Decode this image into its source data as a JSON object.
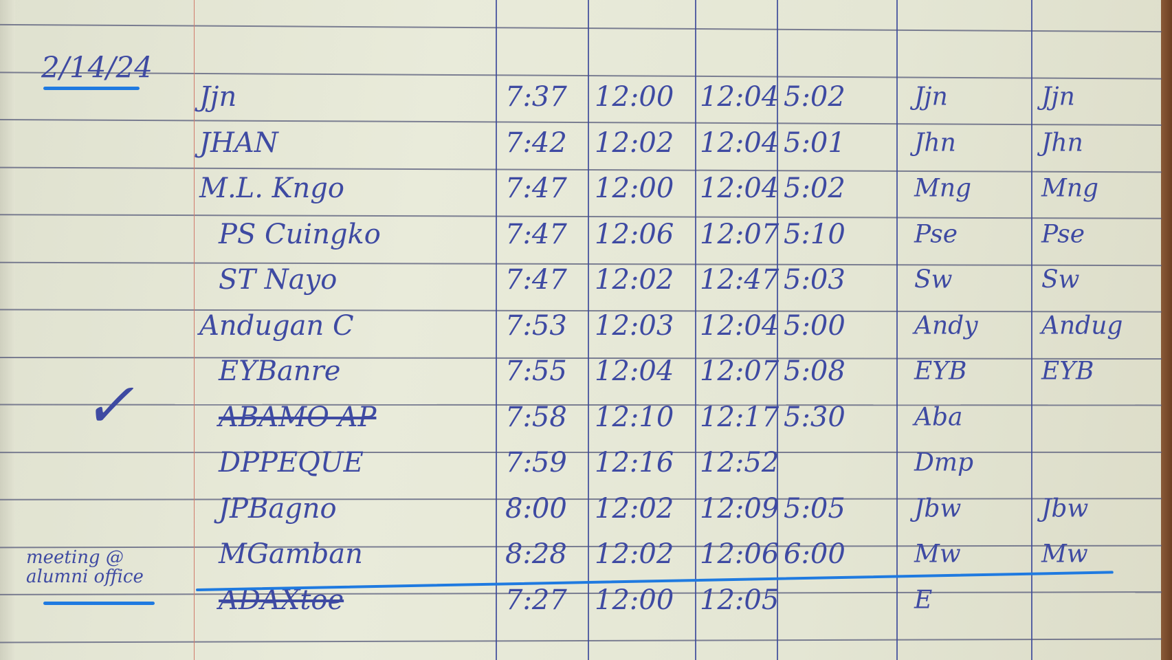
{
  "logbook": {
    "date": "2/14/24",
    "margin_check": "✓",
    "margin_note": "meeting @ alumni office",
    "colors": {
      "ink": "#3e4aa2",
      "highlighter": "#1f7ae0",
      "paper": "#e6e8d6"
    },
    "rows": [
      {
        "name": "Jjn",
        "time_in_am": "7:37",
        "time_out_am": "12:00",
        "time_in_pm": "12:04",
        "time_out_pm": "5:02",
        "sig1": "Jjn",
        "sig2": "Jjn"
      },
      {
        "name": "JHAN",
        "time_in_am": "7:42",
        "time_out_am": "12:02",
        "time_in_pm": "12:04",
        "time_out_pm": "5:01",
        "sig1": "Jhn",
        "sig2": "Jhn"
      },
      {
        "name": "M.L. Kngo",
        "time_in_am": "7:47",
        "time_out_am": "12:00",
        "time_in_pm": "12:04",
        "time_out_pm": "5:02",
        "sig1": "Mng",
        "sig2": "Mng"
      },
      {
        "name": "PS Cuingko",
        "time_in_am": "7:47",
        "time_out_am": "12:06",
        "time_in_pm": "12:07",
        "time_out_pm": "5:10",
        "sig1": "Pse",
        "sig2": "Pse"
      },
      {
        "name": "ST Nayo",
        "time_in_am": "7:47",
        "time_out_am": "12:02",
        "time_in_pm": "12:47",
        "time_out_pm": "5:03",
        "sig1": "Sw",
        "sig2": "Sw"
      },
      {
        "name": "Andugan C",
        "time_in_am": "7:53",
        "time_out_am": "12:03",
        "time_in_pm": "12:04",
        "time_out_pm": "5:00",
        "sig1": "Andy",
        "sig2": "Andug"
      },
      {
        "name": "EYBanre",
        "time_in_am": "7:55",
        "time_out_am": "12:04",
        "time_in_pm": "12:07",
        "time_out_pm": "5:08",
        "sig1": "EYB",
        "sig2": "EYB"
      },
      {
        "name": "ABAMO AP",
        "time_in_am": "7:58",
        "time_out_am": "12:10",
        "time_in_pm": "12:17",
        "time_out_pm": "5:30",
        "sig1": "Aba",
        "sig2": ""
      },
      {
        "name": "DPPEQUE",
        "time_in_am": "7:59",
        "time_out_am": "12:16",
        "time_in_pm": "12:52",
        "time_out_pm": "",
        "sig1": "Dmp",
        "sig2": ""
      },
      {
        "name": "JPBagno",
        "time_in_am": "8:00",
        "time_out_am": "12:02",
        "time_in_pm": "12:09",
        "time_out_pm": "5:05",
        "sig1": "Jbw",
        "sig2": "Jbw"
      },
      {
        "name": "MGamban",
        "time_in_am": "8:28",
        "time_out_am": "12:02",
        "time_in_pm": "12:06",
        "time_out_pm": "6:00",
        "sig1": "Mw",
        "sig2": "Mw"
      },
      {
        "name": "ADAXtoe",
        "time_in_am": "7:27",
        "time_out_am": "12:00",
        "time_in_pm": "12:05",
        "time_out_pm": "",
        "sig1": "E",
        "sig2": ""
      }
    ]
  }
}
